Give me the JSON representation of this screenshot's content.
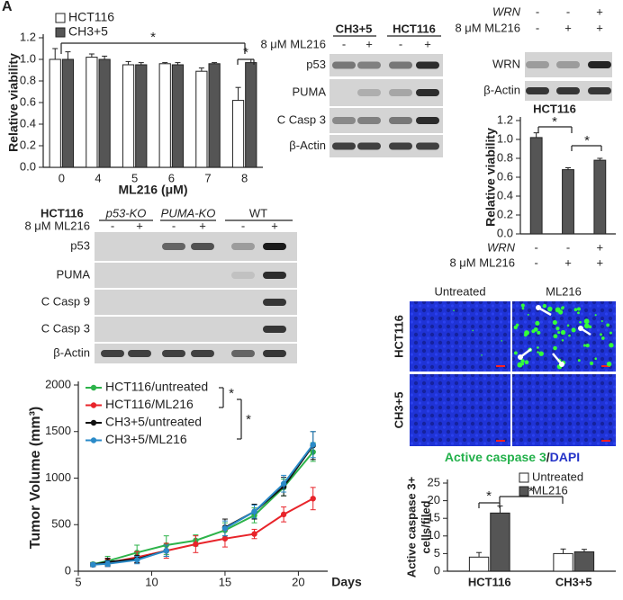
{
  "panel_label": "A",
  "chart_data": [
    {
      "type": "bar",
      "categories": [
        "0",
        "4",
        "5",
        "6",
        "7",
        "8"
      ],
      "series": [
        {
          "name": "HCT116",
          "color": "#ffffff",
          "values": [
            1.0,
            1.02,
            0.95,
            0.96,
            0.89,
            0.62
          ],
          "errors": [
            0.1,
            0.03,
            0.03,
            0.01,
            0.03,
            0.12
          ]
        },
        {
          "name": "CH3+5",
          "color": "#555555",
          "values": [
            1.0,
            1.0,
            0.95,
            0.95,
            0.96,
            0.97
          ],
          "errors": [
            0.07,
            0.03,
            0.02,
            0.02,
            0.01,
            0.03
          ]
        }
      ],
      "xlabel": "ML216 (μM)",
      "ylabel": "Relative viability",
      "ylim": [
        0,
        1.2
      ],
      "yticks": [
        {
          "value": 0,
          "label": "0.0"
        },
        0.2,
        0.4,
        0.6,
        0.8,
        {
          "value": 1,
          "label": "1.0"
        },
        1.2
      ],
      "legend": "top-left",
      "annotations": [
        "*",
        "*"
      ]
    },
    {
      "type": "bar",
      "title": "HCT116",
      "categories": [
        null,
        null,
        null
      ],
      "series": [
        {
          "color": "#555555",
          "values": [
            1.02,
            0.68,
            0.78
          ],
          "errors": [
            0.05,
            0.02,
            0.02
          ]
        }
      ],
      "conditions": [
        {
          "label": "WRN",
          "marks": [
            "-",
            "-",
            "+"
          ]
        },
        {
          "label": "8 μM ML216",
          "marks": [
            "-",
            "+",
            "+"
          ]
        }
      ],
      "ylabel": "Relative viability",
      "ylim": [
        0,
        1.2
      ],
      "yticks": [
        {
          "value": 0,
          "label": "0.0"
        },
        0.2,
        0.4,
        0.6,
        0.8,
        {
          "value": 1,
          "label": "1.0"
        },
        1.2
      ],
      "annotations": [
        "*",
        "*"
      ]
    },
    {
      "type": "line",
      "x": [
        6,
        7,
        9,
        11,
        13,
        15,
        17,
        19,
        21
      ],
      "series": [
        {
          "name": "HCT116/untreated",
          "color": "#2db34a",
          "values": [
            75,
            110,
            200,
            280,
            330,
            440,
            600,
            900,
            1280
          ],
          "errors": [
            20,
            50,
            80,
            100,
            60,
            80,
            80,
            90,
            100
          ]
        },
        {
          "name": "HCT116/ML216",
          "color": "#e8242a",
          "values": [
            70,
            90,
            150,
            220,
            290,
            350,
            400,
            610,
            780
          ],
          "errors": [
            20,
            40,
            60,
            80,
            90,
            90,
            50,
            80,
            120
          ]
        },
        {
          "name": "CH3+5/untreated",
          "color": "#111111",
          "values": [
            70,
            100,
            130,
            220,
            null,
            470,
            640,
            910,
            1350
          ],
          "errors": [
            20,
            40,
            40,
            60,
            null,
            90,
            80,
            100,
            150
          ]
        },
        {
          "name": "CH3+5/ML216",
          "color": "#2a8ac8",
          "values": [
            70,
            80,
            120,
            220,
            null,
            460,
            640,
            940,
            1360
          ],
          "errors": [
            20,
            30,
            40,
            60,
            null,
            80,
            70,
            90,
            140
          ]
        }
      ],
      "xlabel": "Days",
      "ylabel": "Tumor Volume (mm³)",
      "xlim": [
        5,
        22
      ],
      "xticks": [
        5,
        10,
        15,
        20
      ],
      "ylim": [
        0,
        2000
      ],
      "yticks": [
        0,
        500,
        1000,
        1500,
        2000
      ],
      "legend": "top-left",
      "annotations": [
        "*",
        "*"
      ]
    },
    {
      "type": "bar",
      "categories": [
        "HCT116",
        "CH3+5"
      ],
      "series": [
        {
          "name": "Untreated",
          "color": "#ffffff",
          "values": [
            4,
            5
          ],
          "errors": [
            1.3,
            1.3
          ]
        },
        {
          "name": "ML216",
          "color": "#555555",
          "values": [
            16.5,
            5.5
          ],
          "errors": [
            2,
            0.7
          ]
        }
      ],
      "ylabel": [
        "Active caspase 3+",
        "cells/filed"
      ],
      "ylim": [
        0,
        25
      ],
      "yticks": [
        0,
        5,
        10,
        15,
        20,
        25
      ],
      "legend": "top-right",
      "annotations": [
        "*",
        "*"
      ]
    }
  ],
  "blots": [
    {
      "groups": [
        "CH3+5",
        "HCT116"
      ],
      "treatments": [
        {
          "label": "8 μM ML216",
          "marks": [
            "-",
            "+",
            "-",
            "+"
          ]
        }
      ],
      "rows": [
        "p53",
        "PUMA",
        "C Casp 3",
        "β-Actin"
      ]
    },
    {
      "groups": [],
      "treatments": [
        {
          "label": "WRN",
          "marks": [
            "-",
            "-",
            "+"
          ]
        },
        {
          "label": "8 μM ML216",
          "marks": [
            "-",
            "+",
            "+"
          ]
        }
      ],
      "rows": [
        "WRN",
        "β-Actin"
      ]
    },
    {
      "cell_line": "HCT116",
      "groups": [
        "p53-KO",
        "PUMA-KO",
        "WT"
      ],
      "treatments": [
        {
          "label": "8 μM ML216",
          "marks": [
            "-",
            "+",
            "-",
            "+",
            "-",
            "+"
          ]
        }
      ],
      "rows": [
        "p53",
        "PUMA",
        "C Casp 9",
        "C Casp 3",
        "β-Actin"
      ]
    }
  ],
  "microscopy": {
    "columns": [
      "Untreated",
      "ML216"
    ],
    "rows": [
      "HCT116",
      "CH3+5"
    ],
    "caption": [
      "Active caspase 3",
      "/",
      "DAPI"
    ]
  }
}
